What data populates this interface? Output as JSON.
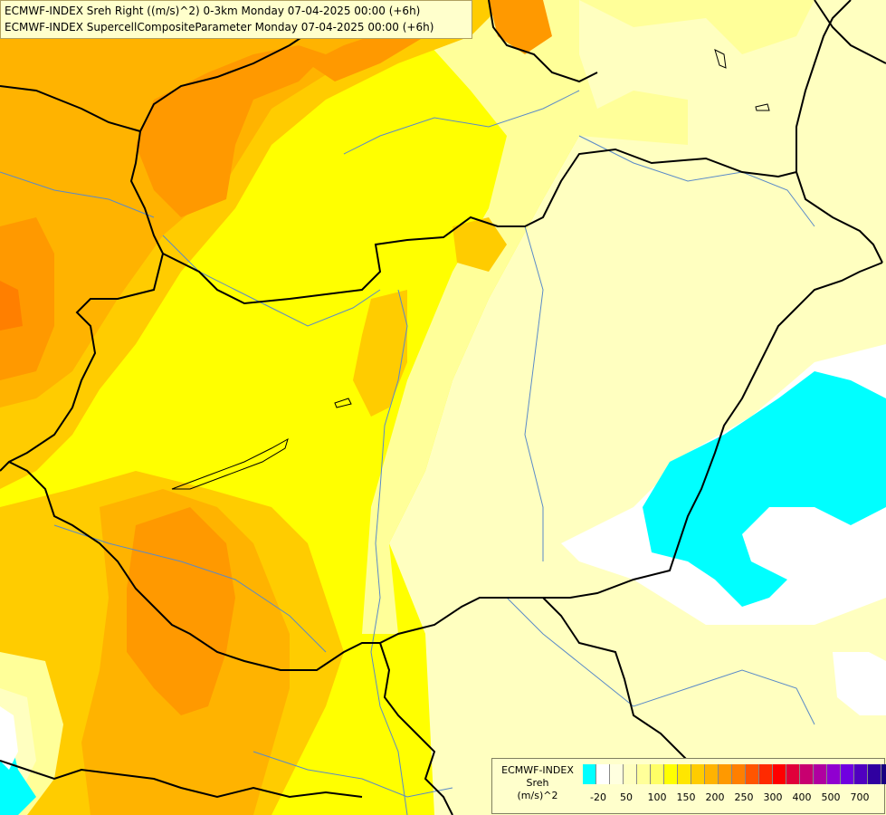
{
  "titles": {
    "line1": "ECMWF-INDEX Sreh Right ((m/s)^2) 0-3km Monday 07-04-2025 00:00 (+6h)",
    "line2": "ECMWF-INDEX SupercellCompositeParameter Monday 07-04-2025 00:00 (+6h)"
  },
  "legend": {
    "line1": "ECMWF-INDEX",
    "line2": "Sreh",
    "line3": "(m/s)^2",
    "colors": [
      "#00ffff",
      "#ffffff",
      "#ffffe0",
      "#ffffc0",
      "#ffff99",
      "#ffff66",
      "#ffff00",
      "#ffe600",
      "#ffcc00",
      "#ffb300",
      "#ff9900",
      "#ff7f00",
      "#ff5500",
      "#ff2a00",
      "#ff0000",
      "#e0003a",
      "#c80070",
      "#b000a0",
      "#9000d0",
      "#7000e0",
      "#5000c0",
      "#3000a0",
      "#180080",
      "#000070"
    ],
    "ticks": [
      "-20",
      "50",
      "100",
      "150",
      "200",
      "250",
      "300",
      "400",
      "500",
      "700"
    ]
  },
  "palette": {
    "light_yellow": "#ffffc0",
    "pale_yellow": "#ffff99",
    "yellow": "#ffff00",
    "gold": "#ffcc00",
    "amber": "#ffb300",
    "orange": "#ff9900",
    "dark_orange": "#ff7f00",
    "red_orange": "#ff5500",
    "cyan": "#00ffff",
    "white": "#ffffff",
    "border_color": "#000000",
    "river_color": "#5a8ac8"
  }
}
